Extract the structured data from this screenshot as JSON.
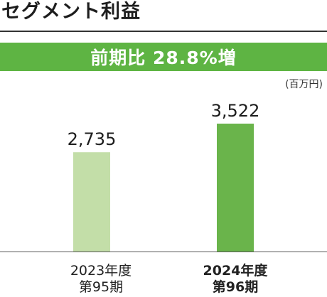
{
  "title": "セグメント利益",
  "banner": {
    "text": "前期比 28.8%増",
    "color": "#5eb443"
  },
  "unit_label": "(百万円)",
  "chart_data": {
    "type": "bar",
    "categories": [
      [
        "2023年度",
        "第95期"
      ],
      [
        "2024年度",
        "第96期"
      ]
    ],
    "values": [
      2735,
      3522
    ],
    "value_labels": [
      "2,735",
      "3,522"
    ],
    "colors": [
      "#c3dea8",
      "#6ab44b"
    ],
    "ylim": [
      0,
      3522
    ],
    "title": "",
    "xlabel": "",
    "ylabel": ""
  }
}
